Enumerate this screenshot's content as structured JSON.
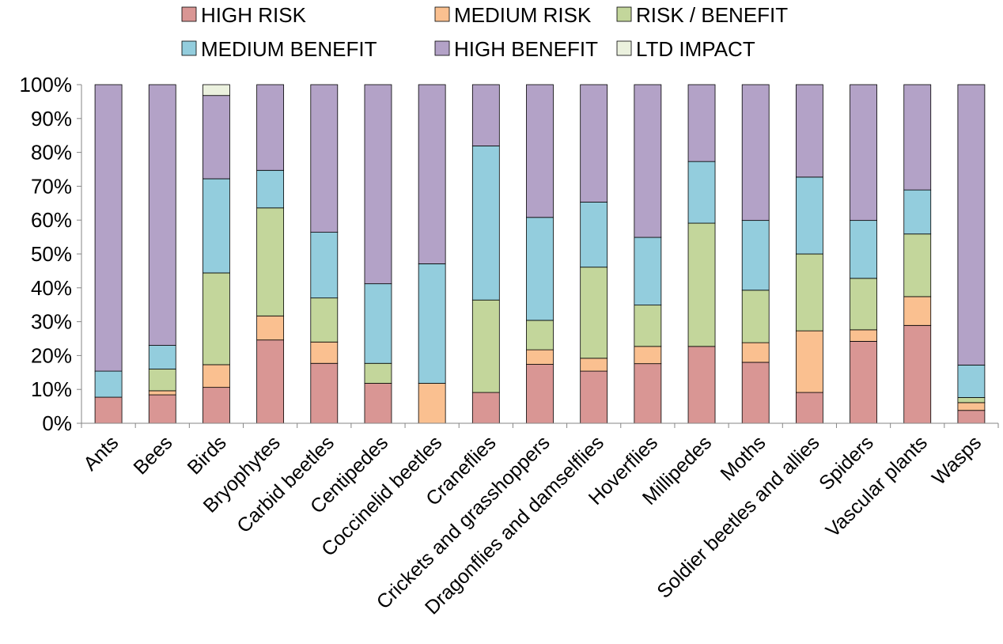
{
  "chart_data": {
    "type": "bar",
    "stacked": true,
    "percent": true,
    "categories": [
      "Ants",
      "Bees",
      "Birds",
      "Bryophytes",
      "Carbid beetles",
      "Centipedes",
      "Coccinelid beetles",
      "Craneflies",
      "Crickets and grasshoppers",
      "Dragonflies and damselflies",
      "Hoverflies",
      "Millipedes",
      "Moths",
      "Soldier beetles and allies",
      "Spiders",
      "Vascular plants",
      "Wasps"
    ],
    "series": [
      {
        "name": "HIGH RISK",
        "color": "#d99694",
        "values": [
          7.7,
          8.4,
          10.6,
          24.6,
          17.7,
          11.8,
          0,
          9.1,
          17.4,
          15.4,
          17.6,
          22.7,
          18.0,
          9.1,
          24.2,
          28.9,
          3.8
        ]
      },
      {
        "name": "MEDIUM RISK",
        "color": "#fac090",
        "values": [
          0,
          1.2,
          6.7,
          7.1,
          6.3,
          0,
          11.8,
          0,
          4.3,
          3.8,
          5.1,
          0,
          5.8,
          18.2,
          3.4,
          8.5,
          2.3
        ]
      },
      {
        "name": "RISK / BENEFIT",
        "color": "#c3d69b",
        "values": [
          0,
          6.4,
          27.1,
          31.9,
          13.0,
          5.9,
          0,
          27.3,
          8.7,
          26.9,
          12.2,
          36.4,
          15.5,
          22.7,
          15.2,
          18.5,
          1.5
        ]
      },
      {
        "name": "MEDIUM BENEFIT",
        "color": "#93cddd",
        "values": [
          7.7,
          7.0,
          27.8,
          11.1,
          19.4,
          23.5,
          35.3,
          45.5,
          30.4,
          19.2,
          20.0,
          18.2,
          20.6,
          22.7,
          17.1,
          13.0,
          9.6
        ]
      },
      {
        "name": "HIGH BENEFIT",
        "color": "#b3a2c7",
        "values": [
          84.6,
          77.0,
          24.6,
          25.3,
          43.6,
          58.8,
          52.9,
          18.1,
          39.2,
          34.7,
          45.1,
          22.7,
          40.1,
          27.3,
          40.1,
          31.1,
          82.8
        ]
      },
      {
        "name": "LTD IMPACT",
        "color": "#ebf1de",
        "values": [
          0,
          0,
          3.2,
          0,
          0,
          0,
          0,
          0,
          0,
          0,
          0,
          0,
          0,
          0,
          0,
          0,
          0
        ]
      }
    ],
    "yticks": [
      "0%",
      "10%",
      "20%",
      "30%",
      "40%",
      "50%",
      "60%",
      "70%",
      "80%",
      "90%",
      "100%"
    ],
    "ylim": [
      0,
      100
    ],
    "grid": false,
    "legend_position": "top",
    "title": "",
    "xlabel": "",
    "ylabel": ""
  }
}
